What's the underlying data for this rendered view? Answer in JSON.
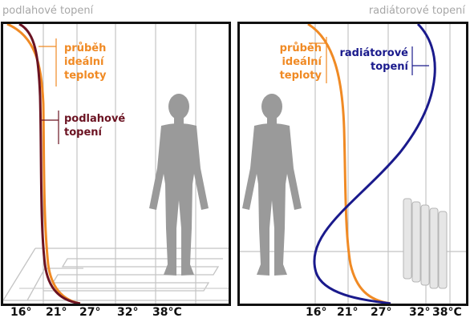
{
  "panels": {
    "left": {
      "title": "podlahové topení",
      "ideal_label": [
        "průběh",
        "ideální",
        "teploty"
      ],
      "floor_label": [
        "podlahové",
        "topení"
      ]
    },
    "right": {
      "title": "radiátorové topení",
      "ideal_label": [
        "průběh",
        "ideální",
        "teploty"
      ],
      "radiator_label": [
        "radiátorové",
        "topení"
      ]
    }
  },
  "axes": {
    "left": [
      "16°",
      "21°",
      "27°",
      "32°",
      "38°C"
    ],
    "right": [
      "16°",
      "21°",
      "27°",
      "32°",
      "38°C"
    ]
  },
  "colors": {
    "ideal": "#f08a24",
    "floor_heating": "#6b1322",
    "radiator_heating": "#1a1a8c",
    "grid": "#b8b8b8",
    "figure": "#9a9a9a"
  },
  "icons": {
    "person": "person-silhouette-icon",
    "radiator": "radiator-icon",
    "floor": "floor-heating-pipes-icon"
  }
}
